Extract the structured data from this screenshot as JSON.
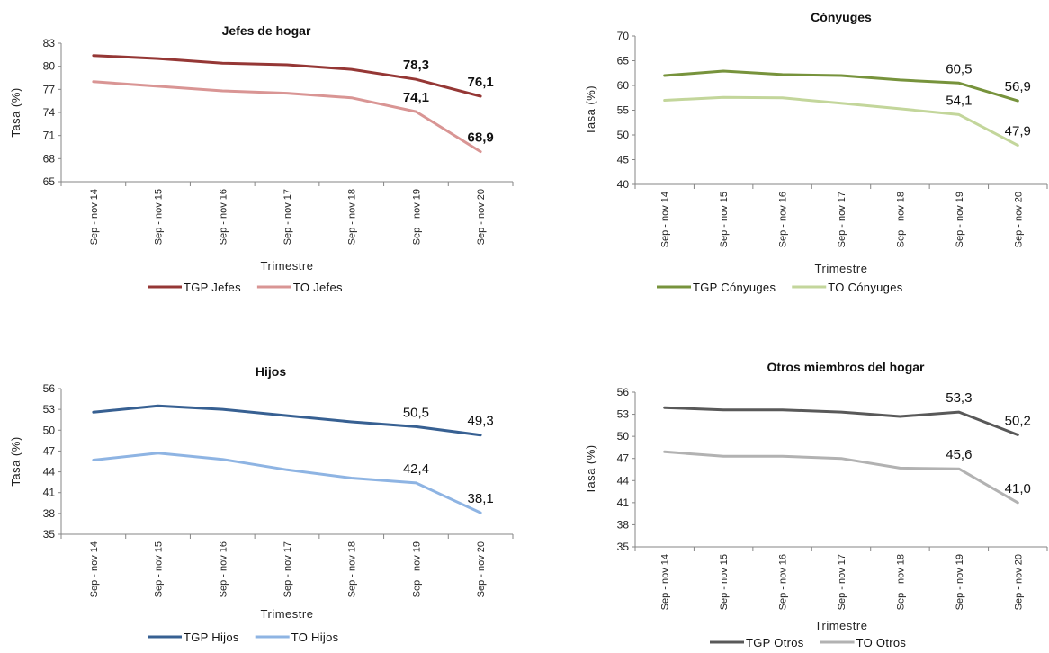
{
  "chart_data": [
    {
      "type": "line",
      "title": "Jefes de hogar",
      "xlabel": "Trimestre",
      "ylabel": "Tasa (%)",
      "ylim": [
        65,
        83
      ],
      "yticks": [
        65,
        68,
        71,
        74,
        77,
        80,
        83
      ],
      "categories": [
        "Sep - nov 14",
        "Sep - nov 15",
        "Sep - nov 16",
        "Sep - nov 17",
        "Sep - nov 18",
        "Sep - nov 19",
        "Sep - nov 20"
      ],
      "series": [
        {
          "name": "TGP Jefes",
          "color": "#953735",
          "values": [
            81.4,
            81.0,
            80.4,
            80.2,
            79.6,
            78.3,
            76.1
          ],
          "labels": [
            null,
            null,
            null,
            null,
            null,
            "78,3",
            "76,1"
          ]
        },
        {
          "name": "TO Jefes",
          "color": "#d99594",
          "values": [
            78.0,
            77.4,
            76.8,
            76.5,
            75.9,
            74.1,
            68.9
          ],
          "labels": [
            null,
            null,
            null,
            null,
            null,
            "74,1",
            "68,9"
          ]
        }
      ],
      "label_bold": true,
      "legend_position": "bottom"
    },
    {
      "type": "line",
      "title": "Cónyuges",
      "xlabel": "Trimestre",
      "ylabel": "Tasa (%)",
      "ylim": [
        40,
        70
      ],
      "yticks": [
        40,
        45,
        50,
        55,
        60,
        65,
        70
      ],
      "categories": [
        "Sep - nov 14",
        "Sep - nov 15",
        "Sep - nov 16",
        "Sep - nov 17",
        "Sep - nov 18",
        "Sep - nov 19",
        "Sep - nov 20"
      ],
      "series": [
        {
          "name": "TGP Cónyuges",
          "color": "#77933c",
          "values": [
            62.0,
            62.9,
            62.2,
            62.0,
            61.1,
            60.5,
            56.9
          ],
          "labels": [
            null,
            null,
            null,
            null,
            null,
            "60,5",
            "56,9"
          ]
        },
        {
          "name": "TO Cónyuges",
          "color": "#c3d69b",
          "values": [
            57.0,
            57.6,
            57.5,
            56.4,
            55.3,
            54.1,
            47.9
          ],
          "labels": [
            null,
            null,
            null,
            null,
            null,
            "54,1",
            "47,9"
          ]
        }
      ],
      "label_bold": false,
      "legend_position": "bottom"
    },
    {
      "type": "line",
      "title": "Hijos",
      "xlabel": "Trimestre",
      "ylabel": "Tasa (%)",
      "ylim": [
        35,
        56
      ],
      "yticks": [
        35,
        38,
        41,
        44,
        47,
        50,
        53,
        56
      ],
      "categories": [
        "Sep - nov 14",
        "Sep - nov 15",
        "Sep - nov 16",
        "Sep - nov 17",
        "Sep - nov 18",
        "Sep - nov 19",
        "Sep - nov 20"
      ],
      "series": [
        {
          "name": "TGP Hijos",
          "color": "#376092",
          "values": [
            52.6,
            53.5,
            53.0,
            52.1,
            51.2,
            50.5,
            49.3
          ],
          "labels": [
            null,
            null,
            null,
            null,
            null,
            "50,5",
            "49,3"
          ]
        },
        {
          "name": "TO Hijos",
          "color": "#8eb4e3",
          "values": [
            45.7,
            46.7,
            45.8,
            44.3,
            43.1,
            42.4,
            38.1
          ],
          "labels": [
            null,
            null,
            null,
            null,
            null,
            "42,4",
            "38,1"
          ]
        }
      ],
      "label_bold": false,
      "legend_position": "bottom"
    },
    {
      "type": "line",
      "title": "Otros miembros del hogar",
      "xlabel": "Trimestre",
      "ylabel": "Tasa (%)",
      "ylim": [
        35,
        56
      ],
      "yticks": [
        35,
        38,
        41,
        44,
        47,
        50,
        53,
        56
      ],
      "categories": [
        "Sep - nov 14",
        "Sep - nov 15",
        "Sep - nov 16",
        "Sep - nov 17",
        "Sep - nov 18",
        "Sep - nov 19",
        "Sep - nov 20"
      ],
      "series": [
        {
          "name": "TGP Otros",
          "color": "#595959",
          "values": [
            53.9,
            53.6,
            53.6,
            53.3,
            52.7,
            53.3,
            50.2
          ],
          "labels": [
            null,
            null,
            null,
            null,
            null,
            "53,3",
            "50,2"
          ]
        },
        {
          "name": "TO Otros",
          "color": "#b2b2b2",
          "values": [
            47.9,
            47.3,
            47.3,
            47.0,
            45.7,
            45.6,
            41.0
          ],
          "labels": [
            null,
            null,
            null,
            null,
            null,
            "45,6",
            "41,0"
          ]
        }
      ],
      "label_bold": false,
      "legend_position": "bottom"
    }
  ]
}
